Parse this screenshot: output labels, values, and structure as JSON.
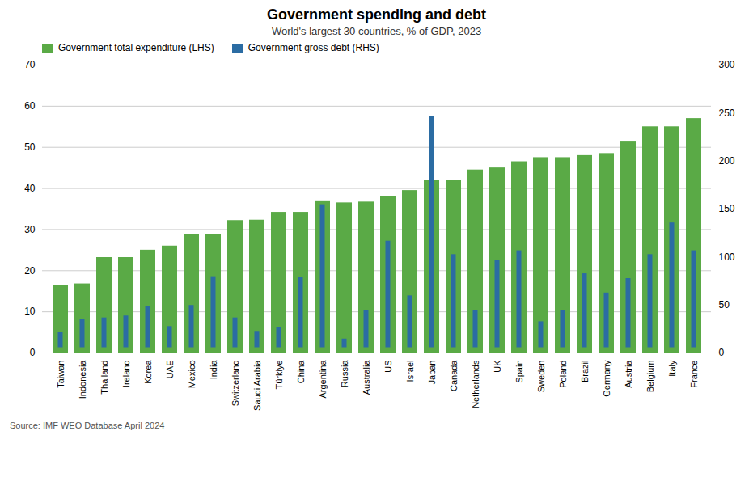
{
  "chart_data": {
    "type": "bar",
    "title": "Government spending and debt",
    "subtitle": "World's largest 30 countries, % of GDP, 2023",
    "source": "Source: IMF WEO Database April 2024",
    "categories": [
      "Taiwan",
      "Indonesia",
      "Thailand",
      "Ireland",
      "Korea",
      "UAE",
      "Mexico",
      "India",
      "Switzerland",
      "Saudi Arabia",
      "Türkiye",
      "China",
      "Argentina",
      "Russia",
      "Australia",
      "US",
      "Israel",
      "Japan",
      "Canada",
      "Netherlands",
      "UK",
      "Spain",
      "Sweden",
      "Poland",
      "Brazil",
      "Germany",
      "Austria",
      "Belgium",
      "Italy",
      "France"
    ],
    "series": [
      {
        "name": "Government total expenditure (LHS)",
        "color": "#5aaa46",
        "values": [
          16.5,
          16.8,
          23.2,
          23.2,
          25.0,
          26.0,
          28.8,
          28.8,
          32.2,
          32.3,
          34.2,
          34.2,
          37.0,
          36.5,
          36.7,
          38.0,
          39.5,
          42.0,
          42.0,
          44.5,
          45.0,
          46.5,
          47.5,
          47.5,
          48.0,
          48.5,
          51.5,
          55.0,
          55.0,
          57.0
        ]
      },
      {
        "name": "Government gross debt (RHS)",
        "color": "#2b6ca3",
        "axis": "y2",
        "values": [
          27,
          40,
          42,
          44,
          54,
          33,
          55,
          85,
          42,
          28,
          32,
          84,
          160,
          20,
          50,
          122,
          65,
          252,
          108,
          50,
          102,
          112,
          38,
          50,
          88,
          68,
          83,
          108,
          141,
          112
        ]
      }
    ],
    "ylim": [
      0,
      70
    ],
    "yticks": [
      0,
      10,
      20,
      30,
      40,
      50,
      60,
      70
    ],
    "y2lim": [
      0,
      300
    ],
    "y2ticks": [
      0,
      50,
      100,
      150,
      200,
      250,
      300
    ],
    "grid": true,
    "legend": "top"
  }
}
